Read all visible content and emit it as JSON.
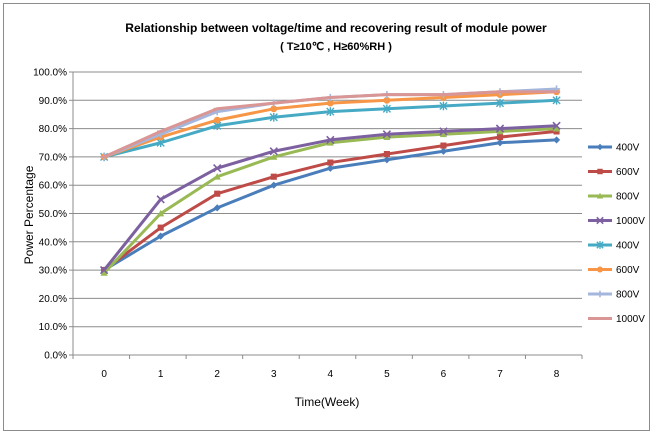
{
  "chart_data": {
    "type": "line",
    "title": "Relationship between voltage/time and recovering result of module power",
    "subtitle": "( T≥10℃ , H≥60%RH )",
    "xlabel": "Time(Week)",
    "ylabel": "Power Percentage",
    "x": [
      0,
      1,
      2,
      3,
      4,
      5,
      6,
      7,
      8
    ],
    "y_ticks": [
      "0.0%",
      "10.0%",
      "20.0%",
      "30.0%",
      "40.0%",
      "50.0%",
      "60.0%",
      "70.0%",
      "80.0%",
      "90.0%",
      "100.0%"
    ],
    "ylim": [
      0,
      100
    ],
    "xlim": [
      0,
      8
    ],
    "grid": "horizontal",
    "legend_position": "right",
    "series": [
      {
        "name": "400V",
        "color": "#4a7ebb",
        "marker": "diamond",
        "values": [
          30,
          42,
          52,
          60,
          66,
          69,
          72,
          75,
          76
        ]
      },
      {
        "name": "600V",
        "color": "#be4b48",
        "marker": "square",
        "values": [
          30,
          45,
          57,
          63,
          68,
          71,
          74,
          77,
          79
        ]
      },
      {
        "name": "800V",
        "color": "#98b954",
        "marker": "triangle",
        "values": [
          29,
          50,
          63,
          70,
          75,
          77,
          78,
          79,
          80
        ]
      },
      {
        "name": "1000V",
        "color": "#7d60a0",
        "marker": "x",
        "values": [
          30,
          55,
          66,
          72,
          76,
          78,
          79,
          80,
          81
        ]
      },
      {
        "name": "400V",
        "color": "#46aac5",
        "marker": "star",
        "values": [
          70,
          75,
          81,
          84,
          86,
          87,
          88,
          89,
          90
        ]
      },
      {
        "name": "600V",
        "color": "#f79646",
        "marker": "circle",
        "values": [
          70,
          77,
          83,
          87,
          89,
          90,
          91,
          92,
          93
        ]
      },
      {
        "name": "800V",
        "color": "#a5b6dc",
        "marker": "plus",
        "values": [
          70,
          78,
          86,
          89,
          91,
          92,
          92,
          93,
          94
        ]
      },
      {
        "name": "1000V",
        "color": "#d99694",
        "marker": "line",
        "values": [
          70,
          79,
          87,
          89,
          91,
          92,
          92,
          93,
          93
        ]
      }
    ]
  }
}
